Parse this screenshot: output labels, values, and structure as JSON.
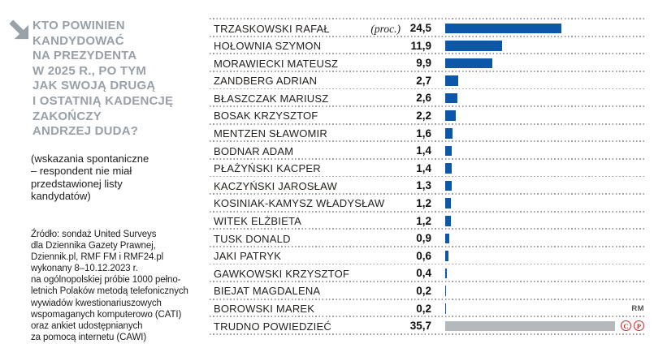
{
  "colors": {
    "accent_blue": "#0d57a8",
    "neutral_bar": "#b5b9bc",
    "title_gray": "#98a0a8",
    "dotted_line": "#9ba1a7",
    "rights_red": "#d0242b"
  },
  "panel": {
    "title_lines": [
      "KTO POWINIEN",
      "KANDYDOWAĆ",
      "NA PREZYDENTA",
      "W 2025 R., PO TYM",
      "JAK SWOJĄ DRUGĄ",
      "I OSTATNIĄ KADENCJĘ",
      "ZAKOŃCZY",
      "ANDRZEJ DUDA?"
    ],
    "note_lines": [
      "(wskazania spontaniczne",
      "– respondent nie miał",
      "przedstawionej listy",
      "kandydatów)"
    ],
    "source_lines": [
      "Źródło: sondaż United Surveys",
      "dla Dziennika Gazety Prawnej,",
      "Dziennik.pl, RMF FM i RMF24.pl",
      "wykonany 8–10.12.2023 r.",
      "na ogólnopolskiej próbie 1000 pełno-",
      "letnich Polaków metodą telefonicznych",
      "wywiadów kwestionariuszowych",
      "wspomaganych komputerowo (CATI)",
      "oraz ankiet udostępnianych",
      "za pomocą internetu (CAWI)"
    ]
  },
  "chart_data": {
    "type": "bar",
    "orientation": "horizontal",
    "title": "Kto powinien kandydować na prezydenta w 2025 r., po tym jak swoją drugą i ostatnią kadencję zakończy Andrzej Duda?",
    "unit_label": "(proc.)",
    "xlim": [
      0,
      36
    ],
    "grid": false,
    "legend": false,
    "categories": [
      "TRZASKOWSKI RAFAŁ",
      "HOŁOWNIA SZYMON",
      "MORAWIECKI MATEUSZ",
      "ZANDBERG ADRIAN",
      "BŁASZCZAK MARIUSZ",
      "BOSAK KRZYSZTOF",
      "MENTZEN SŁAWOMIR",
      "BODNAR ADAM",
      "PŁAŻYŃSKI KACPER",
      "KACZYŃSKI JAROSŁAW",
      "KOSINIAK-KAMYSZ WŁADYSŁAW",
      "WITEK ELŻBIETA",
      "TUSK DONALD",
      "JAKI PATRYK",
      "GAWKOWSKI KRZYSZTOF",
      "BIEJAT MAGDALENA",
      "BOROWSKI MAREK",
      "TRUDNO POWIEDZIEĆ"
    ],
    "values": [
      24.5,
      11.9,
      9.9,
      2.7,
      2.6,
      2.2,
      1.6,
      1.4,
      1.4,
      1.3,
      1.2,
      1.2,
      0.9,
      0.6,
      0.4,
      0.2,
      0.2,
      35.7
    ],
    "value_labels": [
      "24,5",
      "11,9",
      "9,9",
      "2,7",
      "2,6",
      "2,2",
      "1,6",
      "1,4",
      "1,4",
      "1,3",
      "1,2",
      "1,2",
      "0,9",
      "0,6",
      "0,4",
      "0,2",
      "0,2",
      "35,7"
    ],
    "neutral_last_bar": true
  },
  "footer": {
    "credit": "RM",
    "rights_marks": [
      "C",
      "P"
    ]
  }
}
